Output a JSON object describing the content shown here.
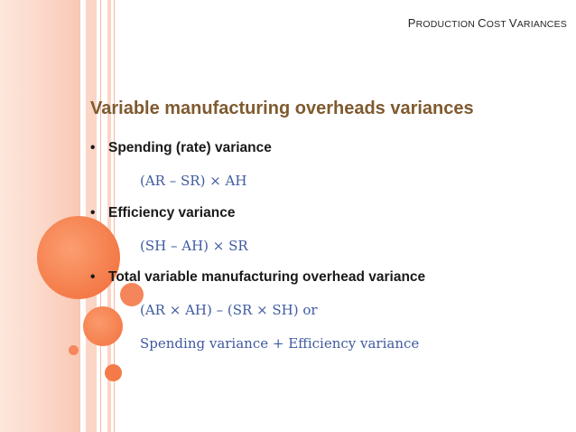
{
  "header": {
    "first_letter": "P",
    "rest1": "RODUCTION ",
    "first_letter2": "C",
    "rest2": "OST ",
    "first_letter3": "V",
    "rest3": "ARIANCES"
  },
  "title": "Variable manufacturing overheads variances",
  "bullets": [
    {
      "marker": "•",
      "label": "Spending (rate) variance"
    },
    {
      "marker": "•",
      "label": "Efficiency variance"
    },
    {
      "marker": "•",
      "label": "Total variable manufacturing overhead variance"
    }
  ],
  "formulas": [
    "(AR – SR) × AH",
    "(SH – AH) × SR",
    "(AR × AH) – (SR × SH) or",
    "Spending variance + Efficiency variance"
  ],
  "colors": {
    "accent": "#f47a48",
    "title": "#7f5a2f",
    "formula": "#3f5aa0"
  }
}
